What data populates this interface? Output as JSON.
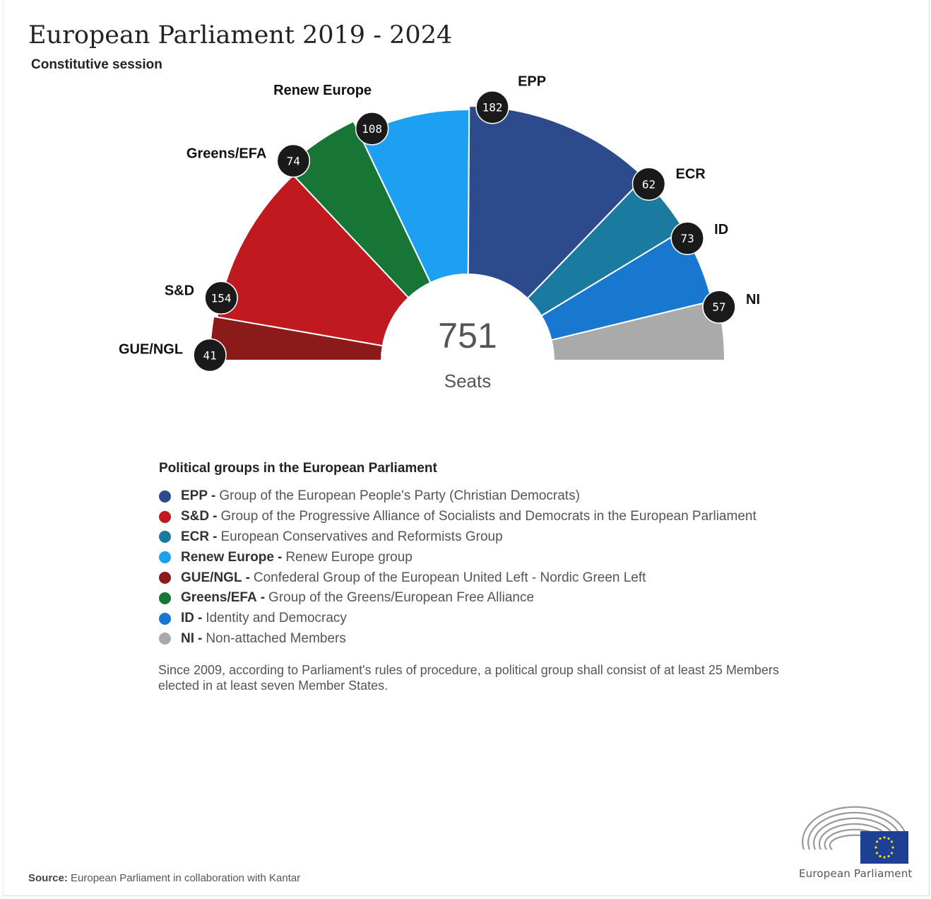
{
  "header": {
    "title": "European Parliament 2019 - 2024",
    "subtitle": "Constitutive session"
  },
  "chart_data": {
    "type": "pie",
    "variant": "parliament-semicircle",
    "title": "European Parliament 2019 - 2024",
    "subtitle": "Constitutive session",
    "total": 751,
    "total_label": "Seats",
    "series": [
      {
        "name": "GUE/NGL",
        "value": 41,
        "color": "#8b1a1a"
      },
      {
        "name": "S&D",
        "value": 154,
        "color": "#c0191f"
      },
      {
        "name": "Greens/EFA",
        "value": 74,
        "color": "#177535"
      },
      {
        "name": "Renew Europe",
        "value": 108,
        "color": "#1da0f2"
      },
      {
        "name": "EPP",
        "value": 182,
        "color": "#2d4a8c"
      },
      {
        "name": "ECR",
        "value": 62,
        "color": "#1a7aa0"
      },
      {
        "name": "ID",
        "value": 73,
        "color": "#1878d0"
      },
      {
        "name": "NI",
        "value": 57,
        "color": "#aaaaaa"
      }
    ]
  },
  "legend": {
    "title": "Political groups in the European Parliament",
    "items": [
      {
        "abbr": "EPP",
        "desc": "Group of the European People's Party (Christian Democrats)",
        "color": "#2d4a8c"
      },
      {
        "abbr": "S&D",
        "desc": "Group of the Progressive Alliance of Socialists and Democrats in the European Parliament",
        "color": "#c0191f"
      },
      {
        "abbr": "ECR",
        "desc": "European Conservatives and Reformists Group",
        "color": "#1a7aa0"
      },
      {
        "abbr": "Renew Europe",
        "desc": "Renew Europe group",
        "color": "#1da0f2"
      },
      {
        "abbr": "GUE/NGL",
        "desc": "Confederal Group of the European United Left - Nordic Green Left",
        "color": "#8b1a1a"
      },
      {
        "abbr": "Greens/EFA",
        "desc": "Group of the Greens/European Free Alliance",
        "color": "#177535"
      },
      {
        "abbr": "ID",
        "desc": "Identity and Democracy",
        "color": "#1878d0"
      },
      {
        "abbr": "NI",
        "desc": "Non-attached Members",
        "color": "#aaaaaa"
      }
    ],
    "separator": "-"
  },
  "note": "Since 2009, according to Parliament's rules of procedure, a political group shall consist of at least 25 Members elected in at least seven Member States.",
  "source": {
    "label": "Source:",
    "text": "European Parliament in collaboration with Kantar"
  },
  "logo": {
    "text": "European Parliament",
    "name": "european-parliament-logo"
  }
}
